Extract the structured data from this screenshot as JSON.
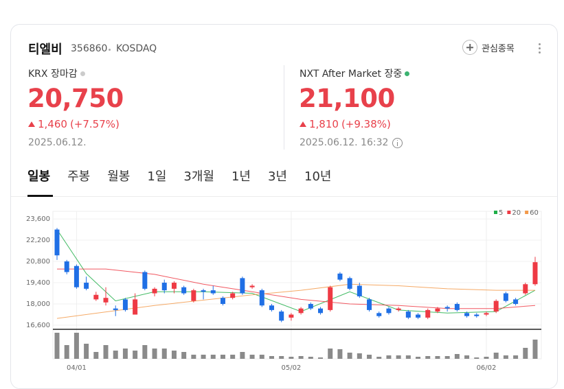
{
  "stock": {
    "name": "티엘비",
    "code": "356860",
    "market": "KOSDAQ",
    "watch": "관심종목"
  },
  "krx": {
    "label": "KRX 장마감",
    "price": "20,750",
    "change": "1,460",
    "change_pct": "(+7.57%)",
    "date": "2025.06.12."
  },
  "nxt": {
    "label": "NXT After Market 장중",
    "price": "21,100",
    "change": "1,810",
    "change_pct": "(+9.38%)",
    "date": "2025.06.12. 16:32"
  },
  "tabs": [
    "일봉",
    "주봉",
    "월봉",
    "1일",
    "3개월",
    "1년",
    "3년",
    "10년"
  ],
  "chart_data": {
    "type": "candlestick",
    "categories": [
      null,
      null,
      "04/01",
      null,
      null,
      null,
      null,
      null,
      null,
      null,
      null,
      null,
      null,
      null,
      null,
      null,
      null,
      null,
      null,
      null,
      null,
      null,
      null,
      null,
      "05/02",
      null,
      null,
      null,
      null,
      null,
      null,
      null,
      null,
      null,
      null,
      null,
      null,
      null,
      null,
      null,
      null,
      null,
      null,
      null,
      "06/02",
      null,
      null,
      null,
      null,
      null
    ],
    "open": [
      22900,
      20800,
      20500,
      19400,
      18300,
      18100,
      17700,
      18300,
      17300,
      20100,
      18700,
      19400,
      19000,
      19100,
      18200,
      18900,
      18900,
      18400,
      18400,
      19700,
      19100,
      18900,
      17900,
      17500,
      17100,
      17400,
      18000,
      17700,
      17600,
      20000,
      19700,
      19200,
      18300,
      17400,
      17700,
      17600,
      17500,
      17300,
      17100,
      17500,
      17800,
      18000,
      17400,
      17300,
      17300,
      17500,
      18700,
      18300,
      18700,
      19300
    ],
    "high": [
      23000,
      20900,
      20600,
      19800,
      18800,
      19100,
      17900,
      18400,
      18700,
      20200,
      19100,
      19600,
      19500,
      19200,
      19000,
      19000,
      19200,
      18500,
      18800,
      19800,
      19300,
      19000,
      18000,
      17600,
      17400,
      17800,
      18100,
      17800,
      19200,
      20100,
      19800,
      19400,
      18400,
      17500,
      17800,
      17800,
      17600,
      17400,
      17700,
      17800,
      17900,
      18100,
      17500,
      17400,
      17500,
      18300,
      18800,
      18400,
      19400,
      21100
    ],
    "low": [
      20900,
      19950,
      19000,
      18900,
      18200,
      17900,
      17200,
      17500,
      17300,
      18900,
      18500,
      18700,
      18700,
      18600,
      18100,
      18300,
      18600,
      17900,
      18300,
      18600,
      19000,
      17800,
      17500,
      16800,
      16900,
      17300,
      17600,
      17300,
      17500,
      19500,
      18900,
      18400,
      17500,
      17100,
      17300,
      17500,
      17000,
      17000,
      17000,
      17400,
      17500,
      17500,
      17100,
      17100,
      17200,
      17400,
      18100,
      17900,
      18600,
      19200
    ],
    "close": [
      21200,
      20100,
      19100,
      19000,
      18600,
      18400,
      17600,
      17600,
      18300,
      19000,
      19000,
      18900,
      19400,
      18700,
      18900,
      18800,
      18700,
      18000,
      18700,
      18700,
      19200,
      17900,
      17600,
      16900,
      17300,
      17700,
      17700,
      17400,
      19100,
      19600,
      19000,
      18500,
      17600,
      17200,
      17400,
      17700,
      17100,
      17100,
      17600,
      17700,
      17700,
      17600,
      17200,
      17200,
      17400,
      18200,
      18200,
      18000,
      19300,
      20750
    ],
    "volume": [
      38,
      20,
      38,
      22,
      10,
      20,
      12,
      15,
      12,
      20,
      15,
      15,
      12,
      10,
      6,
      6,
      6,
      6,
      6,
      10,
      6,
      6,
      4,
      4,
      3,
      4,
      3,
      2,
      15,
      14,
      9,
      8,
      6,
      3,
      5,
      5,
      5,
      3,
      4,
      4,
      4,
      7,
      5,
      2,
      3,
      9,
      5,
      5,
      16,
      28
    ],
    "up_color": "#ee3a44",
    "down_color": "#1f6fe5",
    "volume_color": "#8a8a8a",
    "moving_averages": [
      {
        "name": "5",
        "color": "#1fae48",
        "x": [
          0,
          3,
          6,
          10,
          15,
          20,
          25,
          30,
          35,
          40,
          45,
          49
        ],
        "values": [
          22900,
          20000,
          18200,
          18800,
          18800,
          18700,
          17500,
          18800,
          17600,
          17400,
          17500,
          18900
        ]
      },
      {
        "name": "20",
        "color": "#ee3a44",
        "x": [
          0,
          5,
          10,
          15,
          20,
          25,
          30,
          35,
          40,
          45,
          49
        ],
        "values": [
          20300,
          20300,
          19950,
          19300,
          18800,
          18300,
          18000,
          17900,
          17700,
          17700,
          17900
        ]
      },
      {
        "name": "60",
        "color": "#f39a4a",
        "x": [
          0,
          10,
          20,
          25,
          30,
          35,
          40,
          45,
          49
        ],
        "values": [
          17050,
          17900,
          18600,
          18900,
          19300,
          19200,
          19000,
          18900,
          18900
        ]
      }
    ],
    "ylim": [
      16330,
      24100
    ],
    "yticks": [
      {
        "value": 16600,
        "label": "16,600"
      },
      {
        "value": 18000,
        "label": "18,000"
      },
      {
        "value": 19400,
        "label": "19,400"
      },
      {
        "value": 20800,
        "label": "20,800"
      },
      {
        "value": 22200,
        "label": "22,200"
      },
      {
        "value": 23600,
        "label": "23,600"
      }
    ],
    "grid": true
  }
}
